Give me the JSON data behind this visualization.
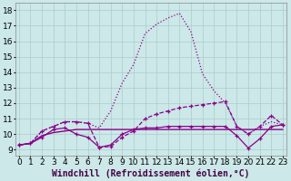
{
  "background_color": "#cce8e8",
  "line_color": "#880088",
  "grid_color": "#aacccc",
  "xlabel": "Windchill (Refroidissement éolien,°C)",
  "x_ticks": [
    0,
    1,
    2,
    3,
    4,
    5,
    6,
    7,
    8,
    9,
    10,
    11,
    12,
    13,
    14,
    15,
    16,
    17,
    18,
    19,
    20,
    21,
    22,
    23
  ],
  "y_ticks": [
    9,
    10,
    11,
    12,
    13,
    14,
    15,
    16,
    17,
    18
  ],
  "xlim": [
    -0.3,
    23.3
  ],
  "ylim": [
    8.6,
    18.5
  ],
  "series_dotted_x": [
    0,
    1,
    2,
    3,
    4,
    5,
    6,
    7,
    8,
    9,
    10,
    11,
    12,
    13,
    14,
    15,
    16,
    17,
    18,
    19,
    20,
    21,
    22,
    23
  ],
  "series_dotted_y": [
    9.3,
    9.4,
    10.2,
    10.5,
    10.8,
    10.8,
    10.7,
    10.4,
    11.5,
    13.3,
    14.5,
    16.5,
    17.1,
    17.5,
    17.8,
    16.6,
    13.9,
    12.8,
    12.0,
    10.5,
    10.0,
    10.5,
    10.8,
    10.6
  ],
  "series_dash_marker_x": [
    0,
    1,
    2,
    3,
    4,
    5,
    6,
    7,
    8,
    9,
    10,
    11,
    12,
    13,
    14,
    15,
    16,
    17,
    18,
    19,
    20,
    21,
    22,
    23
  ],
  "series_dash_marker_y": [
    9.3,
    9.4,
    10.2,
    10.5,
    10.8,
    10.8,
    10.7,
    9.15,
    9.2,
    9.8,
    10.2,
    11.0,
    11.3,
    11.5,
    11.7,
    11.8,
    11.9,
    12.0,
    12.1,
    10.5,
    10.0,
    10.5,
    11.2,
    10.6
  ],
  "series_flat_x": [
    0,
    1,
    2,
    3,
    4,
    5,
    6,
    7,
    8,
    9,
    10,
    11,
    12,
    13,
    14,
    15,
    16,
    17,
    18,
    19,
    20,
    21,
    22,
    23
  ],
  "series_flat_y": [
    9.3,
    9.4,
    9.9,
    10.1,
    10.2,
    10.3,
    10.3,
    10.3,
    10.3,
    10.3,
    10.3,
    10.3,
    10.3,
    10.3,
    10.3,
    10.3,
    10.3,
    10.3,
    10.3,
    10.3,
    10.3,
    10.3,
    10.3,
    10.3
  ],
  "series_zigzag_x": [
    0,
    1,
    2,
    3,
    4,
    5,
    6,
    7,
    8,
    9,
    10,
    11,
    12,
    13,
    14,
    15,
    16,
    17,
    18,
    19,
    20,
    21,
    22,
    23
  ],
  "series_zigzag_y": [
    9.3,
    9.4,
    9.8,
    10.3,
    10.4,
    10.0,
    9.8,
    9.15,
    9.3,
    10.0,
    10.3,
    10.4,
    10.4,
    10.5,
    10.5,
    10.5,
    10.5,
    10.5,
    10.5,
    9.9,
    9.1,
    9.7,
    10.5,
    10.6
  ],
  "xlabel_fontsize": 7,
  "tick_fontsize": 6.5
}
